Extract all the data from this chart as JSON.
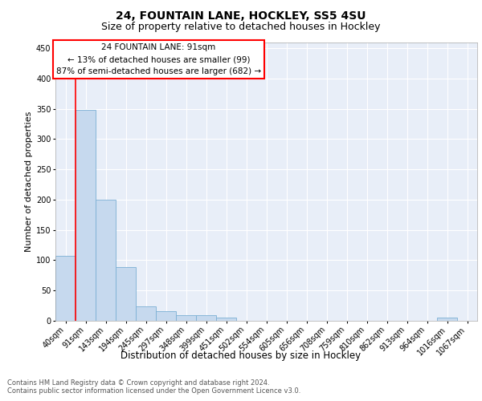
{
  "title1": "24, FOUNTAIN LANE, HOCKLEY, SS5 4SU",
  "title2": "Size of property relative to detached houses in Hockley",
  "xlabel": "Distribution of detached houses by size in Hockley",
  "ylabel": "Number of detached properties",
  "bin_labels": [
    "40sqm",
    "91sqm",
    "143sqm",
    "194sqm",
    "245sqm",
    "297sqm",
    "348sqm",
    "399sqm",
    "451sqm",
    "502sqm",
    "554sqm",
    "605sqm",
    "656sqm",
    "708sqm",
    "759sqm",
    "810sqm",
    "862sqm",
    "913sqm",
    "964sqm",
    "1016sqm",
    "1067sqm"
  ],
  "bar_heights": [
    107,
    348,
    200,
    89,
    24,
    16,
    9,
    9,
    5,
    0,
    0,
    0,
    0,
    0,
    0,
    0,
    0,
    0,
    0,
    5,
    0
  ],
  "bar_color": "#c6d9ee",
  "bar_edgecolor": "#7bafd4",
  "red_line_x": 0.5,
  "annotation_line1": "24 FOUNTAIN LANE: 91sqm",
  "annotation_line2": "← 13% of detached houses are smaller (99)",
  "annotation_line3": "87% of semi-detached houses are larger (682) →",
  "ylim": [
    0,
    460
  ],
  "yticks": [
    0,
    50,
    100,
    150,
    200,
    250,
    300,
    350,
    400,
    450
  ],
  "background_color": "#e8eef8",
  "grid_color": "#ffffff",
  "footer_text": "Contains HM Land Registry data © Crown copyright and database right 2024.\nContains public sector information licensed under the Open Government Licence v3.0.",
  "title1_fontsize": 10,
  "title2_fontsize": 9,
  "xlabel_fontsize": 8.5,
  "ylabel_fontsize": 8,
  "tick_fontsize": 7,
  "annotation_fontsize": 7.5,
  "footer_fontsize": 6
}
